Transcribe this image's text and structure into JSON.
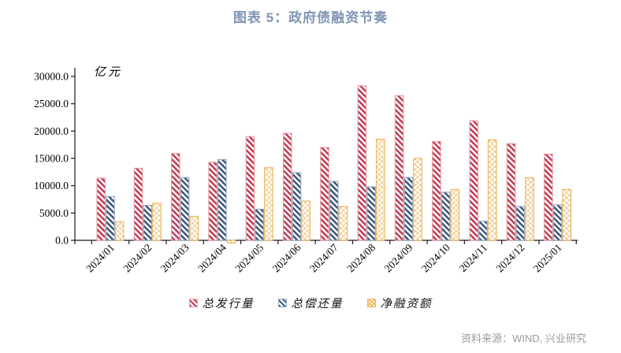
{
  "title": "图表 5：政府债融资节奏",
  "source": "资料来源：WIND, 兴业研究",
  "unit_label": "亿元",
  "colors": {
    "title_text": "#8095B5",
    "source_text": "#9A9A9A",
    "axis": "#1A1A1A",
    "tick_text": "#000000"
  },
  "chart_data": {
    "type": "bar",
    "title": "图表 5：政府债融资节奏",
    "xlabel": "",
    "ylabel": "亿元",
    "ylim": [
      0,
      30000
    ],
    "ytick_step": 5000,
    "grid": false,
    "legend_position": "bottom",
    "categories": [
      "2024/01",
      "2024/02",
      "2024/03",
      "2024/04",
      "2024/05",
      "2024/06",
      "2024/07",
      "2024/08",
      "2024/09",
      "2024/10",
      "2024/11",
      "2024/12",
      "2025/01"
    ],
    "series": [
      {
        "name": "总发行量",
        "hatch": "diagonal",
        "color": "#C23A52",
        "border": "#E79CA6",
        "values": [
          11400,
          13200,
          15900,
          14300,
          19000,
          19600,
          17000,
          28300,
          26500,
          18100,
          21900,
          17700,
          15800
        ]
      },
      {
        "name": "总偿还量",
        "hatch": "diagonal",
        "color": "#3E5677",
        "border": "#93A9C4",
        "values": [
          8000,
          6400,
          11500,
          14800,
          5700,
          12400,
          10800,
          9800,
          11500,
          8800,
          3500,
          6200,
          6500
        ]
      },
      {
        "name": "净融资额",
        "hatch": "crosshatch",
        "color": "#E9A63C",
        "border": "#ECB45C",
        "values": [
          3400,
          6800,
          4400,
          -500,
          13300,
          7200,
          6200,
          18500,
          15000,
          9300,
          18400,
          11500,
          9300
        ]
      }
    ]
  }
}
